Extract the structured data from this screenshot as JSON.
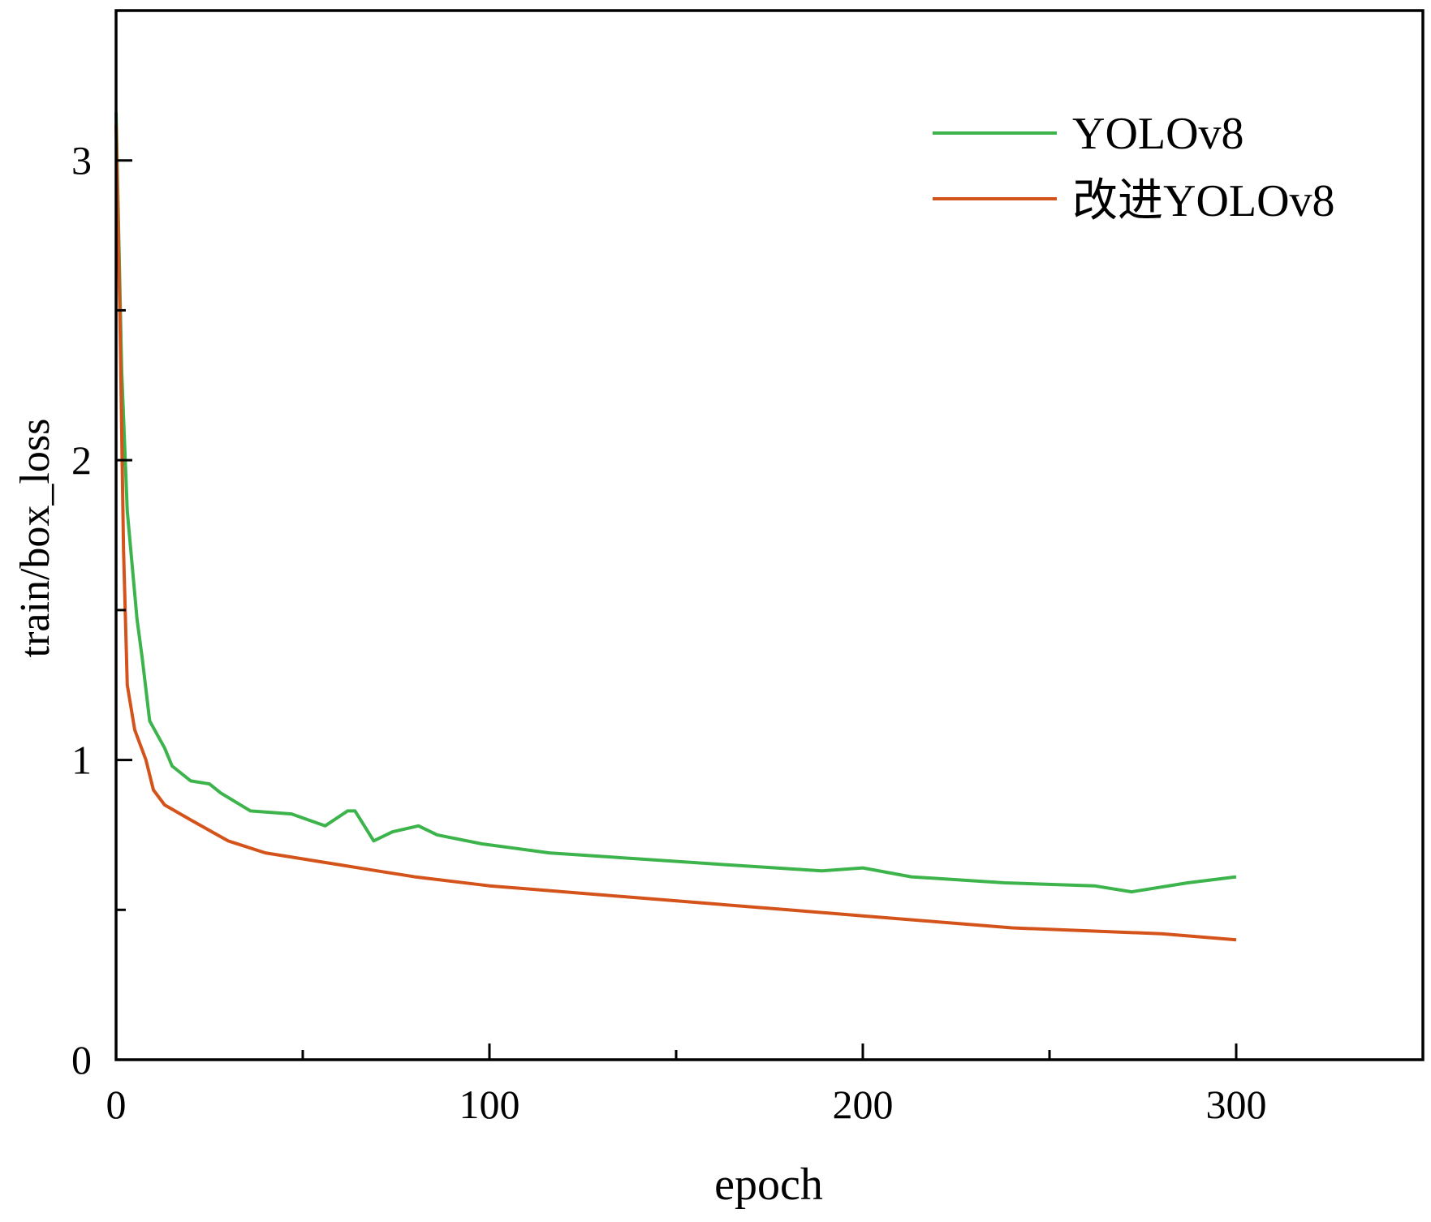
{
  "chart_data": {
    "type": "line",
    "title": "",
    "xlabel": "epoch",
    "ylabel": "train/box_loss",
    "xlim": [
      0,
      350
    ],
    "ylim": [
      0,
      3.5
    ],
    "xticks": [
      0,
      100,
      200,
      300
    ],
    "xtick_labels": [
      "0",
      "100",
      "200",
      "300"
    ],
    "xminor": [
      50,
      150,
      250
    ],
    "yticks": [
      0,
      1,
      2,
      3
    ],
    "ytick_labels": [
      "0",
      "1",
      "2",
      "3"
    ],
    "yminor": [
      0.5,
      1.5,
      2.5
    ],
    "grid": false,
    "legend_position": "top-right",
    "series": [
      {
        "name": "YOLOv8",
        "color": "#3cb44b",
        "x": [
          0,
          1.5,
          3,
          5.6,
          7,
          9,
          13,
          15,
          20,
          25,
          28,
          36,
          47,
          56,
          62,
          64,
          69,
          74,
          81,
          86,
          98,
          116,
          140,
          164,
          189,
          200,
          213,
          238,
          262,
          272,
          287,
          300
        ],
        "y": [
          3.16,
          2.3,
          1.83,
          1.47,
          1.34,
          1.13,
          1.04,
          0.98,
          0.93,
          0.92,
          0.89,
          0.83,
          0.82,
          0.78,
          0.83,
          0.83,
          0.73,
          0.76,
          0.78,
          0.75,
          0.72,
          0.69,
          0.67,
          0.65,
          0.63,
          0.64,
          0.61,
          0.59,
          0.58,
          0.56,
          0.59,
          0.61
        ]
      },
      {
        "name": "改进YOLOv8",
        "color": "#d4531a",
        "x": [
          0,
          1,
          2,
          3,
          5,
          8,
          10,
          13,
          20,
          30,
          40,
          50,
          60,
          70,
          80,
          100,
          120,
          140,
          160,
          180,
          200,
          220,
          240,
          260,
          280,
          300
        ],
        "y": [
          3.12,
          2.5,
          1.7,
          1.25,
          1.1,
          1.0,
          0.9,
          0.85,
          0.8,
          0.73,
          0.69,
          0.67,
          0.65,
          0.63,
          0.61,
          0.58,
          0.56,
          0.54,
          0.52,
          0.5,
          0.48,
          0.46,
          0.44,
          0.43,
          0.42,
          0.4
        ]
      }
    ]
  }
}
